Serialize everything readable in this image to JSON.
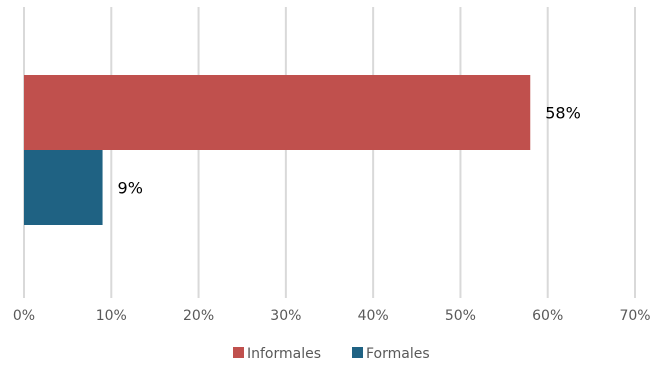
{
  "chart_data": {
    "type": "bar",
    "orientation": "horizontal",
    "categories": [
      ""
    ],
    "series": [
      {
        "name": "Informales",
        "values": [
          58
        ],
        "label": "58%",
        "color": "#C0504D"
      },
      {
        "name": "Formales",
        "values": [
          9
        ],
        "label": "9%",
        "color": "#1F6283"
      }
    ],
    "title": "",
    "xlabel": "",
    "ylabel": "",
    "xlim": [
      0,
      70
    ],
    "x_ticks": [
      0,
      10,
      20,
      30,
      40,
      50,
      60,
      70
    ],
    "x_tick_labels": [
      "0%",
      "10%",
      "20%",
      "30%",
      "40%",
      "50%",
      "60%",
      "70%"
    ],
    "grid": "vertical",
    "grid_color": "#D9D9D9",
    "legend_position": "bottom"
  }
}
